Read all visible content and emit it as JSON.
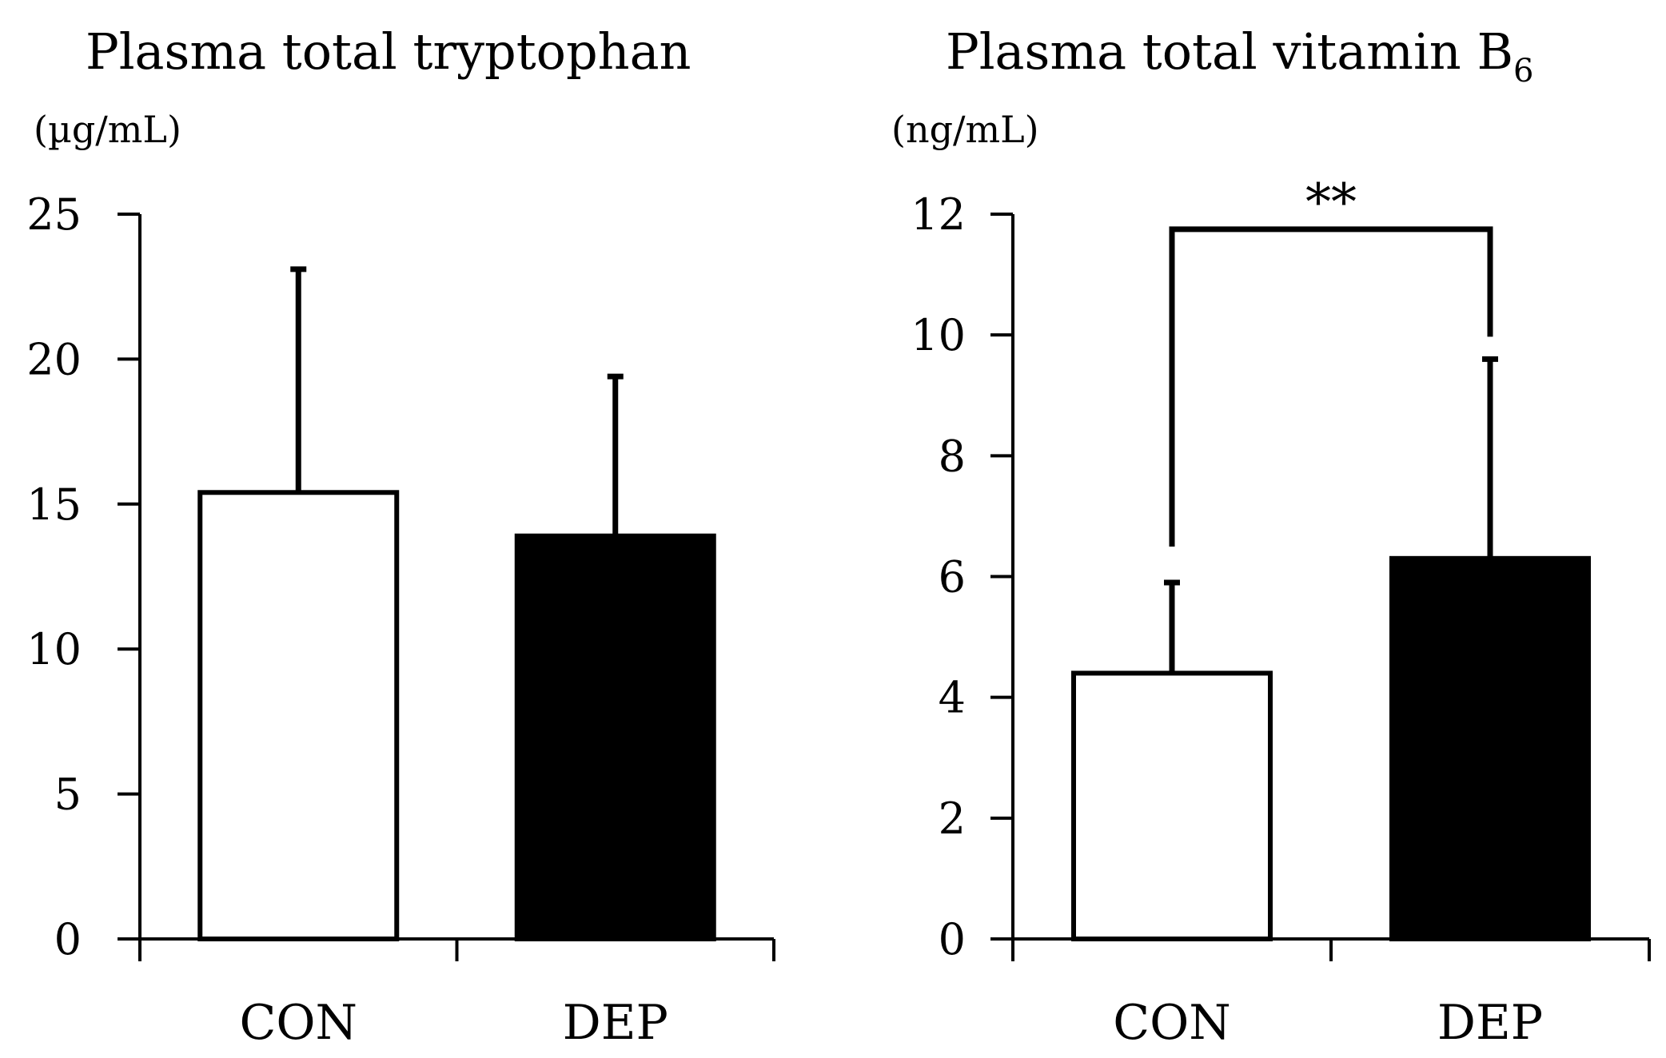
{
  "chart_data": [
    {
      "type": "bar",
      "title": "Plasma total tryptophan",
      "unit": "(µg/mL)",
      "categories": [
        "CON",
        "DEP"
      ],
      "values": [
        15.4,
        13.9
      ],
      "errors": [
        7.7,
        5.5
      ],
      "fills": [
        "#ffffff",
        "#000000"
      ],
      "ylim": [
        0,
        25
      ],
      "yticks": [
        0,
        5,
        10,
        15,
        20,
        25
      ],
      "ytick_labels": [
        "0",
        "5",
        "10",
        "15",
        "20",
        "25"
      ],
      "xlabel": "",
      "ylabel": ""
    },
    {
      "type": "bar",
      "title": "Plasma total vitamin B",
      "title_subscript": "6",
      "unit": "(ng/mL)",
      "categories": [
        "CON",
        "DEP"
      ],
      "values": [
        4.4,
        6.3
      ],
      "errors": [
        1.5,
        3.3
      ],
      "fills": [
        "#ffffff",
        "#000000"
      ],
      "ylim": [
        0,
        12
      ],
      "yticks": [
        0,
        2,
        4,
        6,
        8,
        10,
        12
      ],
      "ytick_labels": [
        "0",
        "2",
        "4",
        "6",
        "8",
        "10",
        "12"
      ],
      "significance": {
        "label": "**",
        "between": [
          "CON",
          "DEP"
        ],
        "level": 11.75
      },
      "xlabel": "",
      "ylabel": ""
    }
  ]
}
